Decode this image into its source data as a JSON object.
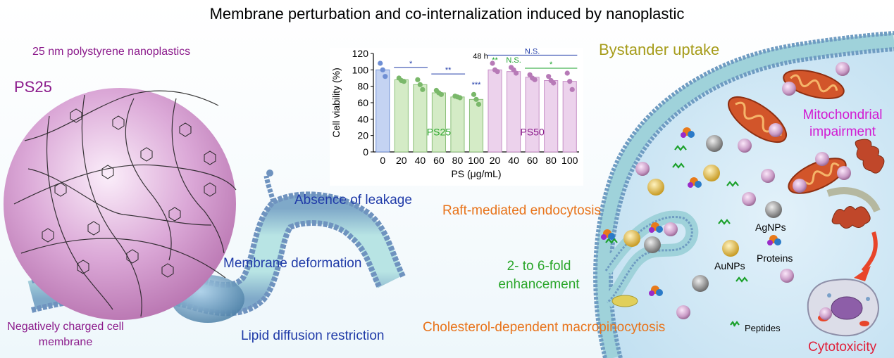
{
  "title": "Membrane perturbation and co-internalization induced by nanoplastic",
  "left_panel": {
    "nanoplastic_label": "25 nm polystyrene nanoplastics",
    "particle_label": "PS25",
    "membrane_label": "Negatively charged cell membrane",
    "leakage_label": "Absence of  leakage",
    "deformation_label": "Membrane deformation",
    "diffusion_label": "Lipid diffusion restriction"
  },
  "right_panel": {
    "bystander_label": "Bystander uptake",
    "raft_label": "Raft-mediated endocytosis",
    "enhancement_label": "2- to 6-fold enhancement",
    "macropinocytosis_label": "Cholesterol-dependent macropinocytosis",
    "mitochondria_label": "Mitochondrial impairment",
    "agnps_label": "AgNPs",
    "aunps_label": "AuNPs",
    "proteins_label": "Proteins",
    "peptides_label": "Peptides",
    "cytotoxicity_label": "Cytotoxicity"
  },
  "colors": {
    "nanoparticle": "#d49fd0",
    "membrane_head": "#7fa9c9",
    "membrane_tail": "#a9dede",
    "au_particle": "#e1b94a",
    "ag_particle": "#8c8c8c",
    "peptide": "#1aa02a",
    "mitochondrion": "#d2552a",
    "ps25_bar": "#d4ebc6",
    "ps50_bar": "#ecd2ec",
    "control_bar": "#c4d3f2"
  },
  "chart_data": {
    "type": "bar",
    "ylabel": "Cell viability (%)",
    "xlabel": "PS (μg/mL)",
    "ylim": [
      0,
      120
    ],
    "yticks": [
      0,
      20,
      40,
      60,
      80,
      100,
      120
    ],
    "time_label": "48 h",
    "categories": [
      "0",
      "20",
      "40",
      "60",
      "80",
      "100",
      "20",
      "40",
      "60",
      "80",
      "100"
    ],
    "groups": [
      {
        "name": "",
        "indices": [
          0
        ]
      },
      {
        "name": "PS25",
        "indices": [
          1,
          2,
          3,
          4,
          5
        ]
      },
      {
        "name": "PS50",
        "indices": [
          6,
          7,
          8,
          9,
          10
        ]
      }
    ],
    "values": [
      100,
      88,
      82,
      72,
      67,
      64,
      100,
      98,
      91,
      87,
      86
    ],
    "points": [
      [
        108,
        100,
        92
      ],
      [
        90,
        87,
        86
      ],
      [
        88,
        82,
        76
      ],
      [
        75,
        72,
        70
      ],
      [
        68,
        67,
        66
      ],
      [
        70,
        64,
        58
      ],
      [
        108,
        100,
        98
      ],
      [
        103,
        100,
        96
      ],
      [
        94,
        90,
        88
      ],
      [
        92,
        87,
        84
      ],
      [
        96,
        86,
        76
      ]
    ],
    "significance": [
      {
        "label": "*",
        "from": 1,
        "to": 2,
        "y": 103,
        "color": "#1f3aa8"
      },
      {
        "label": "**",
        "from": 3,
        "to": 4,
        "y": 95,
        "color": "#1f3aa8"
      },
      {
        "label": "***",
        "from": 5,
        "to": 5,
        "y": 77,
        "color": "#1f3aa8"
      },
      {
        "label": "N.S.",
        "from": 6,
        "to": 10,
        "y": 118,
        "color": "#1f3aa8"
      },
      {
        "label": "**",
        "from": 6,
        "to": 6,
        "y": 107,
        "color": "#1aa02a"
      },
      {
        "label": "N.S.",
        "from": 7,
        "to": 7,
        "y": 107,
        "color": "#1aa02a"
      },
      {
        "label": "*",
        "from": 8,
        "to": 10,
        "y": 102,
        "color": "#1aa02a"
      }
    ]
  }
}
